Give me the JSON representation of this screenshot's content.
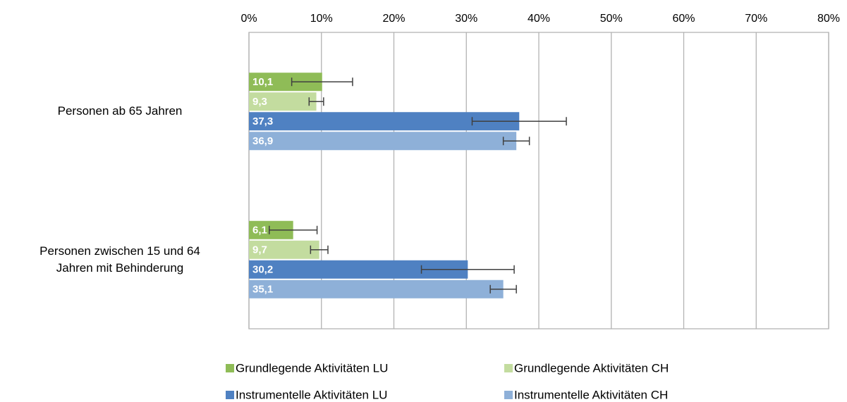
{
  "chart_data": {
    "type": "bar",
    "orientation": "horizontal",
    "categories": [
      "Personen ab 65 Jahren",
      "Personen zwischen 15 und 64 Jahren mit Behinderung"
    ],
    "series": [
      {
        "name": "Grundlegende Aktivitäten LU",
        "color": "#8fbc57",
        "values": [
          10.1,
          6.1
        ],
        "value_labels": [
          "10,1",
          "6,1"
        ],
        "errors": [
          4.2,
          3.3
        ]
      },
      {
        "name": "Grundlegende Aktivitäten CH",
        "color": "#c3dc9f",
        "values": [
          9.3,
          9.7
        ],
        "value_labels": [
          "9,3",
          "9,7"
        ],
        "errors": [
          1.0,
          1.2
        ]
      },
      {
        "name": "Instrumentelle Aktivitäten LU",
        "color": "#4f81c2",
        "values": [
          37.3,
          30.2
        ],
        "value_labels": [
          "37,3",
          "30,2"
        ],
        "errors": [
          6.5,
          6.4
        ]
      },
      {
        "name": "Instrumentelle Aktivitäten CH",
        "color": "#8eb0d8",
        "values": [
          36.9,
          35.1
        ],
        "value_labels": [
          "36,9",
          "35,1"
        ],
        "errors": [
          1.8,
          1.8
        ]
      }
    ],
    "xlim": [
      0,
      80
    ],
    "xticks": [
      {
        "value": 0,
        "label": "0%"
      },
      {
        "value": 10,
        "label": "10%"
      },
      {
        "value": 20,
        "label": "20%"
      },
      {
        "value": 30,
        "label": "30%"
      },
      {
        "value": 40,
        "label": "40%"
      },
      {
        "value": 50,
        "label": "50%"
      },
      {
        "value": 60,
        "label": "60%"
      },
      {
        "value": 70,
        "label": "70%"
      },
      {
        "value": 80,
        "label": "80%"
      }
    ],
    "grid": true,
    "legend": "bottom"
  }
}
